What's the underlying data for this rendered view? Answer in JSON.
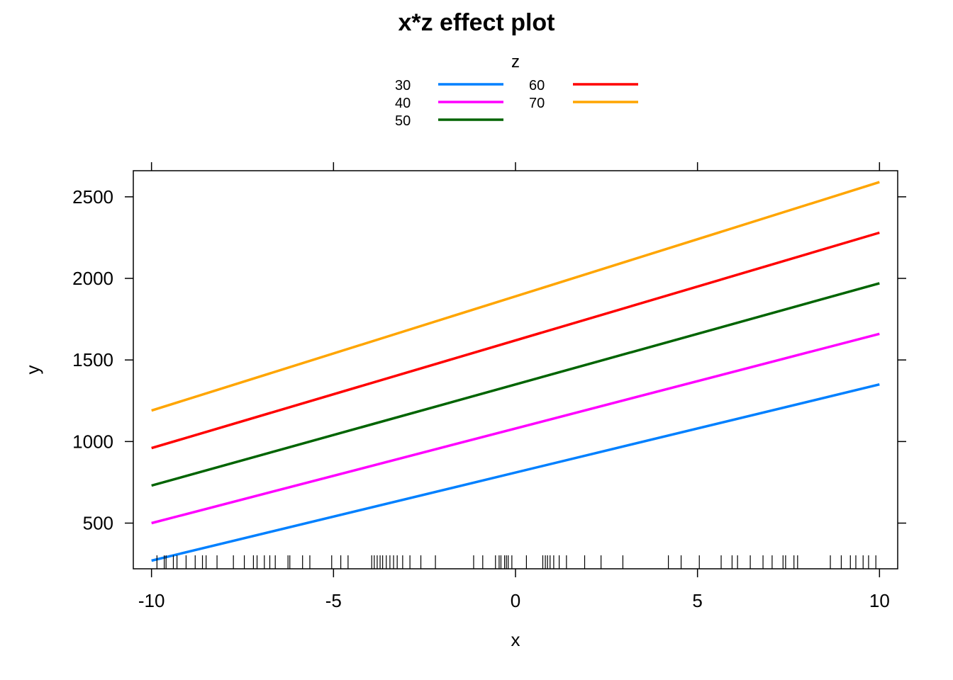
{
  "chart_data": {
    "type": "line",
    "title": "x*z effect plot",
    "xlabel": "x",
    "ylabel": "y",
    "xlim": [
      -10.5,
      10.5
    ],
    "ylim": [
      220,
      2660
    ],
    "x_ticks": [
      -10,
      -5,
      0,
      5,
      10
    ],
    "y_ticks": [
      500,
      1000,
      1500,
      2000,
      2500
    ],
    "legend": {
      "title": "z",
      "position": "top",
      "columns": 2
    },
    "x": [
      -10,
      10
    ],
    "series": [
      {
        "name": "30",
        "color": "#0080FF",
        "values": [
          270,
          1350
        ]
      },
      {
        "name": "40",
        "color": "#FF00FF",
        "values": [
          500,
          1660
        ]
      },
      {
        "name": "50",
        "color": "#006400",
        "values": [
          730,
          1970
        ]
      },
      {
        "name": "60",
        "color": "#FF0000",
        "values": [
          960,
          2280
        ]
      },
      {
        "name": "70",
        "color": "#FFA500",
        "values": [
          1190,
          2590
        ]
      }
    ],
    "rug_x": [
      -9.85,
      -9.65,
      -9.6,
      -9.4,
      -9.3,
      -9.05,
      -8.8,
      -8.6,
      -8.5,
      -8.2,
      -7.75,
      -7.45,
      -7.2,
      -7.1,
      -6.9,
      -6.75,
      -6.6,
      -6.25,
      -6.2,
      -5.85,
      -5.65,
      -5.05,
      -4.8,
      -4.6,
      -3.95,
      -3.88,
      -3.8,
      -3.72,
      -3.65,
      -3.55,
      -3.45,
      -3.35,
      -3.25,
      -3.1,
      -2.9,
      -2.6,
      -2.2,
      -1.15,
      -0.9,
      -0.55,
      -0.45,
      -0.4,
      -0.3,
      -0.25,
      -0.2,
      -0.1,
      0.3,
      0.75,
      0.82,
      0.88,
      0.95,
      1.05,
      1.2,
      1.4,
      1.9,
      2.35,
      2.95,
      4.2,
      4.55,
      5.05,
      5.65,
      5.95,
      6.1,
      6.45,
      6.8,
      7.05,
      7.35,
      7.42,
      7.65,
      7.75,
      8.65,
      8.95,
      9.2,
      9.35,
      9.55,
      9.7,
      9.9
    ]
  }
}
